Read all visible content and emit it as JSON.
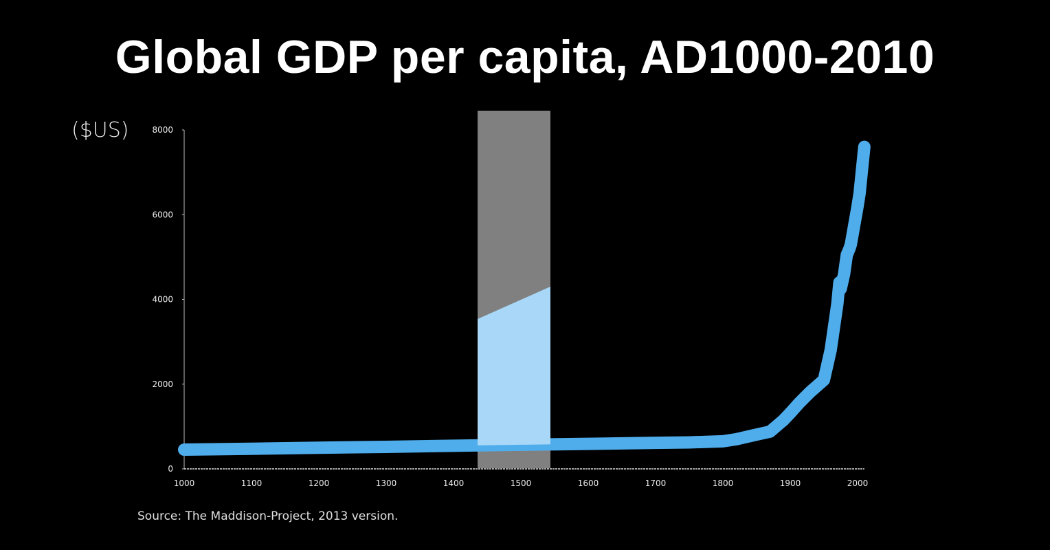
{
  "slide": {
    "title": "Global GDP per capita, AD1000-2010",
    "unit_label": "($US)",
    "source": "Source: The Maddison-Project, 2013 version."
  },
  "colors": {
    "background": "#000000",
    "line": "#4fadec",
    "highlight_band": "#808080",
    "text": "#ffffff"
  },
  "chart_data": {
    "type": "line",
    "title": "Global GDP per capita, AD1000-2010",
    "xlabel": "",
    "ylabel": "($US)",
    "xlim": [
      1000,
      2010
    ],
    "ylim": [
      0,
      8000
    ],
    "x_ticks": [
      "1000",
      "1100",
      "1200",
      "1300",
      "1400",
      "1500",
      "1600",
      "1700",
      "1800",
      "1900",
      "2000"
    ],
    "y_ticks": [
      "0",
      "2000",
      "4000",
      "6000",
      "8000"
    ],
    "grid": false,
    "legend": null,
    "highlight_band": {
      "x_start": 1437,
      "x_end": 1545,
      "color": "#808080"
    },
    "series": [
      {
        "name": "Global GDP per capita",
        "x": [
          1000,
          1100,
          1200,
          1300,
          1400,
          1500,
          1600,
          1700,
          1750,
          1800,
          1820,
          1850,
          1870,
          1890,
          1900,
          1913,
          1930,
          1950,
          1960,
          1970,
          1973,
          1975,
          1980,
          1984,
          1988,
          1990,
          2000,
          2003,
          2010
        ],
        "values": [
          455,
          475,
          500,
          520,
          545,
          570,
          590,
          615,
          625,
          650,
          700,
          810,
          880,
          1150,
          1320,
          1550,
          1820,
          2100,
          2800,
          3900,
          4400,
          4250,
          4600,
          5050,
          5200,
          5300,
          6200,
          6500,
          7600
        ]
      }
    ],
    "annotations": [
      "Source: The Maddison-Project, 2013 version."
    ]
  }
}
